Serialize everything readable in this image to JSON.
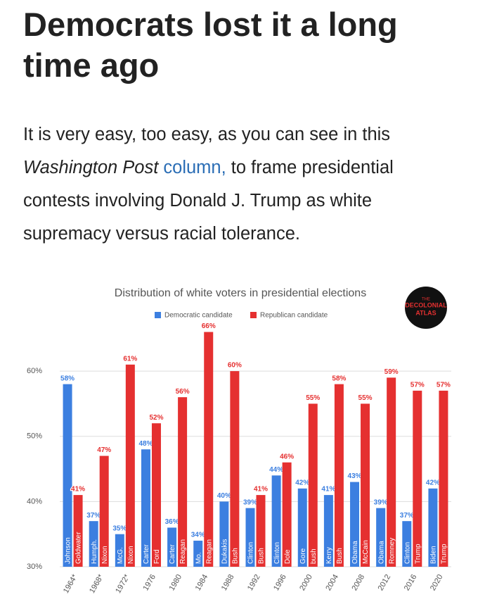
{
  "article": {
    "headline": "Democrats lost it a long time ago",
    "body": [
      "It is very easy, too easy, as you can see in this ",
      "Washington Post",
      " column,",
      " to frame presidential contests involving Donald J. Trump as white supremacy versus racial tolerance."
    ]
  },
  "logo": [
    "THE",
    "DECOLONIAL",
    "ATLAS"
  ],
  "chart_data": {
    "type": "bar",
    "title": "Distribution of white voters in presidential elections",
    "categories": [
      "1964*",
      "1968*",
      "1972*",
      "1976",
      "1980",
      "1984",
      "1988",
      "1992",
      "1996",
      "2000",
      "2004",
      "2008",
      "2012",
      "2016",
      "2020"
    ],
    "series": [
      {
        "name": "Democratic candidate",
        "color": "#3c7fe0",
        "values": [
          58,
          37,
          35,
          48,
          36,
          34,
          40,
          39,
          44,
          42,
          41,
          43,
          39,
          37,
          42
        ],
        "value_labels": [
          "58%",
          "37%",
          "35%",
          "48%",
          "36%",
          "34%",
          "40%",
          "39%",
          "44%",
          "42%",
          "41%",
          "43%",
          "39%",
          "37%",
          "42%"
        ],
        "candidates": [
          "Johnson",
          "Humph.",
          "McG.",
          "Carter",
          "Carter",
          "Mo.",
          "Dukakis",
          "Clinton",
          "Clinton",
          "Gore",
          "Kerry",
          "Obama",
          "Obama",
          "Clinton",
          "Biden"
        ]
      },
      {
        "name": "Republican candidate",
        "color": "#e53030",
        "values": [
          41,
          47,
          61,
          52,
          56,
          66,
          60,
          41,
          46,
          55,
          58,
          55,
          59,
          57,
          57
        ],
        "value_labels": [
          "41%",
          "47%",
          "61%",
          "52%",
          "56%",
          "66%",
          "60%",
          "41%",
          "46%",
          "55%",
          "58%",
          "55%",
          "59%",
          "57%",
          "57%"
        ],
        "candidates": [
          "Goldwater",
          "Nixon",
          "Nixon",
          "Ford",
          "Reagan",
          "Reagan",
          "Bush",
          "Bush",
          "Dole",
          "bush",
          "Bush",
          "McCain",
          "Romney",
          "Trump",
          "Trump"
        ]
      }
    ],
    "ylim": [
      30,
      68
    ],
    "yticks": [
      {
        "value": 30,
        "label": "30%"
      },
      {
        "value": 40,
        "label": "40%"
      },
      {
        "value": 50,
        "label": "50%"
      },
      {
        "value": 60,
        "label": "60%"
      }
    ],
    "grid": true,
    "legend": "top"
  }
}
